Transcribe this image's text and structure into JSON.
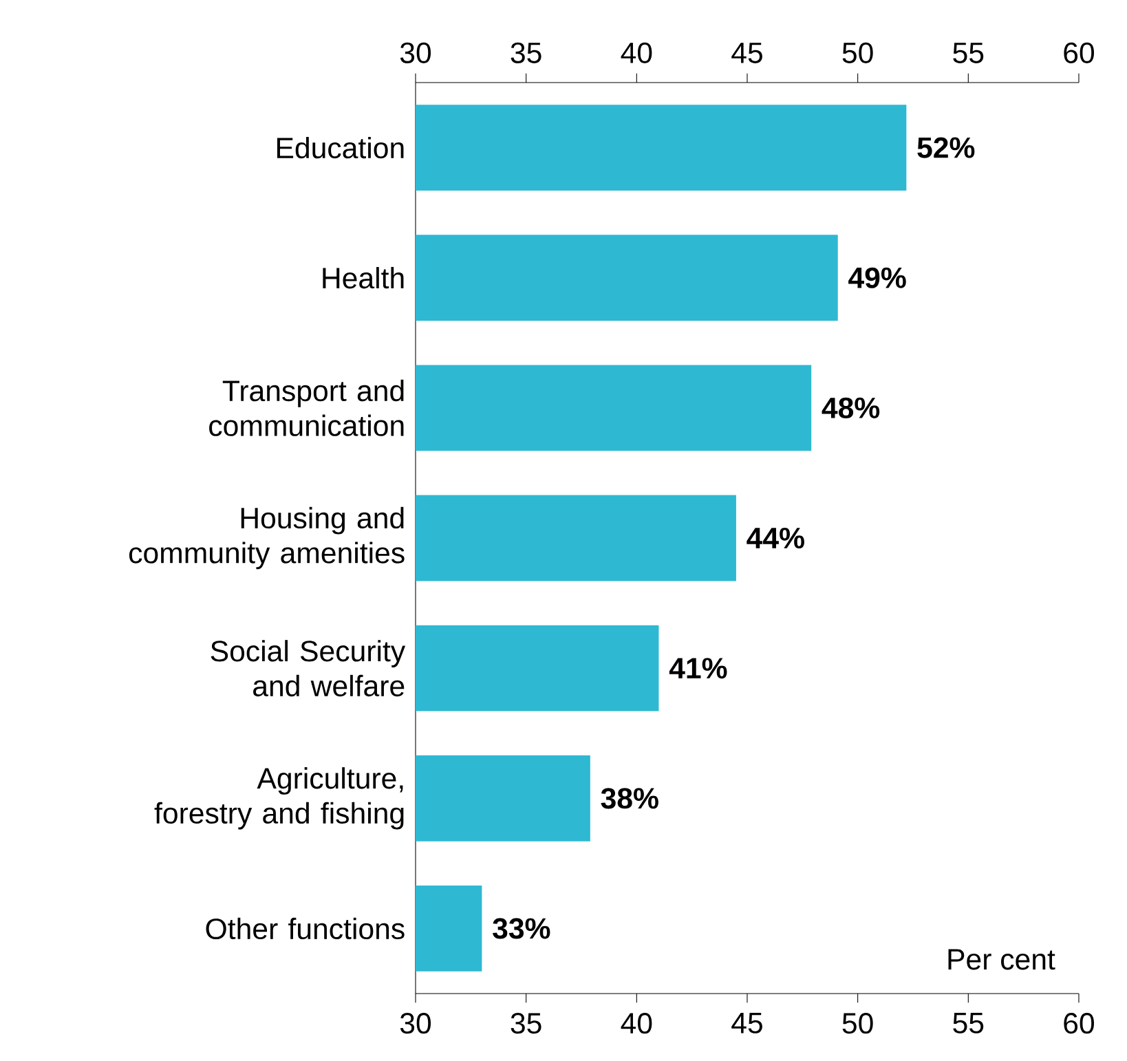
{
  "chart_data": {
    "type": "bar",
    "orientation": "horizontal",
    "xlabel": "Per cent",
    "categories": [
      "Education",
      "Health",
      "Transport and communication",
      "Housing and community amenities",
      "Social Security and welfare",
      "Agriculture, forestry and fishing",
      "Other functions"
    ],
    "values": [
      52.2,
      49.1,
      47.9,
      44.5,
      41.0,
      37.9,
      33.0
    ],
    "value_labels": [
      "52%",
      "49%",
      "48%",
      "44%",
      "41%",
      "38%",
      "33%"
    ],
    "color": "#2eb8d2",
    "xlim": [
      30,
      60
    ],
    "xticks": [
      30,
      35,
      40,
      45,
      50,
      55,
      60
    ],
    "x2lim": [
      30,
      60
    ],
    "x2ticks": [
      30,
      35,
      40,
      45,
      50,
      55,
      60
    ]
  }
}
